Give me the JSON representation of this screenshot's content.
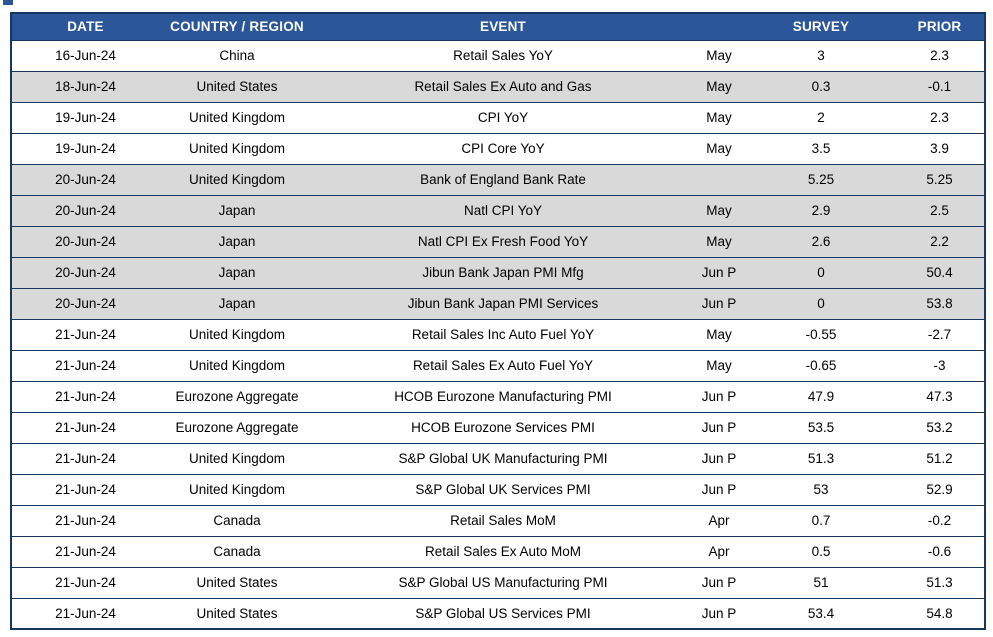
{
  "colors": {
    "header_bg": "#2B579A",
    "header_text": "#FFFFFF",
    "shaded_row": "#D9D9D9",
    "row_bg": "#FFFFFF",
    "border": "#17375D",
    "text": "#000000"
  },
  "chart_data": {
    "type": "table",
    "columns": [
      "DATE",
      "COUNTRY / REGION",
      "EVENT",
      "",
      "SURVEY",
      "PRIOR"
    ],
    "rows": [
      {
        "date": "16-Jun-24",
        "country": "China",
        "event": "Retail Sales YoY",
        "period": "May",
        "survey": "3",
        "prior": "2.3",
        "shaded": false
      },
      {
        "date": "18-Jun-24",
        "country": "United States",
        "event": "Retail Sales Ex Auto and Gas",
        "period": "May",
        "survey": "0.3",
        "prior": "-0.1",
        "shaded": true
      },
      {
        "date": "19-Jun-24",
        "country": "United Kingdom",
        "event": "CPI YoY",
        "period": "May",
        "survey": "2",
        "prior": "2.3",
        "shaded": false
      },
      {
        "date": "19-Jun-24",
        "country": "United Kingdom",
        "event": "CPI Core YoY",
        "period": "May",
        "survey": "3.5",
        "prior": "3.9",
        "shaded": false
      },
      {
        "date": "20-Jun-24",
        "country": "United Kingdom",
        "event": "Bank of England Bank Rate",
        "period": "",
        "survey": "5.25",
        "prior": "5.25",
        "shaded": true
      },
      {
        "date": "20-Jun-24",
        "country": "Japan",
        "event": "Natl CPI YoY",
        "period": "May",
        "survey": "2.9",
        "prior": "2.5",
        "shaded": true
      },
      {
        "date": "20-Jun-24",
        "country": "Japan",
        "event": "Natl CPI Ex Fresh Food YoY",
        "period": "May",
        "survey": "2.6",
        "prior": "2.2",
        "shaded": true
      },
      {
        "date": "20-Jun-24",
        "country": "Japan",
        "event": "Jibun Bank Japan PMI Mfg",
        "period": "Jun P",
        "survey": "0",
        "prior": "50.4",
        "shaded": true
      },
      {
        "date": "20-Jun-24",
        "country": "Japan",
        "event": "Jibun Bank Japan PMI Services",
        "period": "Jun P",
        "survey": "0",
        "prior": "53.8",
        "shaded": true
      },
      {
        "date": "21-Jun-24",
        "country": "United Kingdom",
        "event": "Retail Sales Inc Auto Fuel YoY",
        "period": "May",
        "survey": "-0.55",
        "prior": "-2.7",
        "shaded": false
      },
      {
        "date": "21-Jun-24",
        "country": "United Kingdom",
        "event": "Retail Sales Ex Auto Fuel YoY",
        "period": "May",
        "survey": "-0.65",
        "prior": "-3",
        "shaded": false
      },
      {
        "date": "21-Jun-24",
        "country": "Eurozone Aggregate",
        "event": "HCOB Eurozone Manufacturing PMI",
        "period": "Jun P",
        "survey": "47.9",
        "prior": "47.3",
        "shaded": false
      },
      {
        "date": "21-Jun-24",
        "country": "Eurozone Aggregate",
        "event": "HCOB Eurozone Services PMI",
        "period": "Jun P",
        "survey": "53.5",
        "prior": "53.2",
        "shaded": false
      },
      {
        "date": "21-Jun-24",
        "country": "United Kingdom",
        "event": "S&P Global UK Manufacturing PMI",
        "period": "Jun P",
        "survey": "51.3",
        "prior": "51.2",
        "shaded": false
      },
      {
        "date": "21-Jun-24",
        "country": "United Kingdom",
        "event": "S&P Global UK Services PMI",
        "period": "Jun P",
        "survey": "53",
        "prior": "52.9",
        "shaded": false
      },
      {
        "date": "21-Jun-24",
        "country": "Canada",
        "event": "Retail Sales MoM",
        "period": "Apr",
        "survey": "0.7",
        "prior": "-0.2",
        "shaded": false
      },
      {
        "date": "21-Jun-24",
        "country": "Canada",
        "event": "Retail Sales Ex Auto MoM",
        "period": "Apr",
        "survey": "0.5",
        "prior": "-0.6",
        "shaded": false
      },
      {
        "date": "21-Jun-24",
        "country": "United States",
        "event": "S&P Global US Manufacturing PMI",
        "period": "Jun P",
        "survey": "51",
        "prior": "51.3",
        "shaded": false
      },
      {
        "date": "21-Jun-24",
        "country": "United States",
        "event": "S&P Global US Services PMI",
        "period": "Jun P",
        "survey": "53.4",
        "prior": "54.8",
        "shaded": false
      }
    ]
  }
}
